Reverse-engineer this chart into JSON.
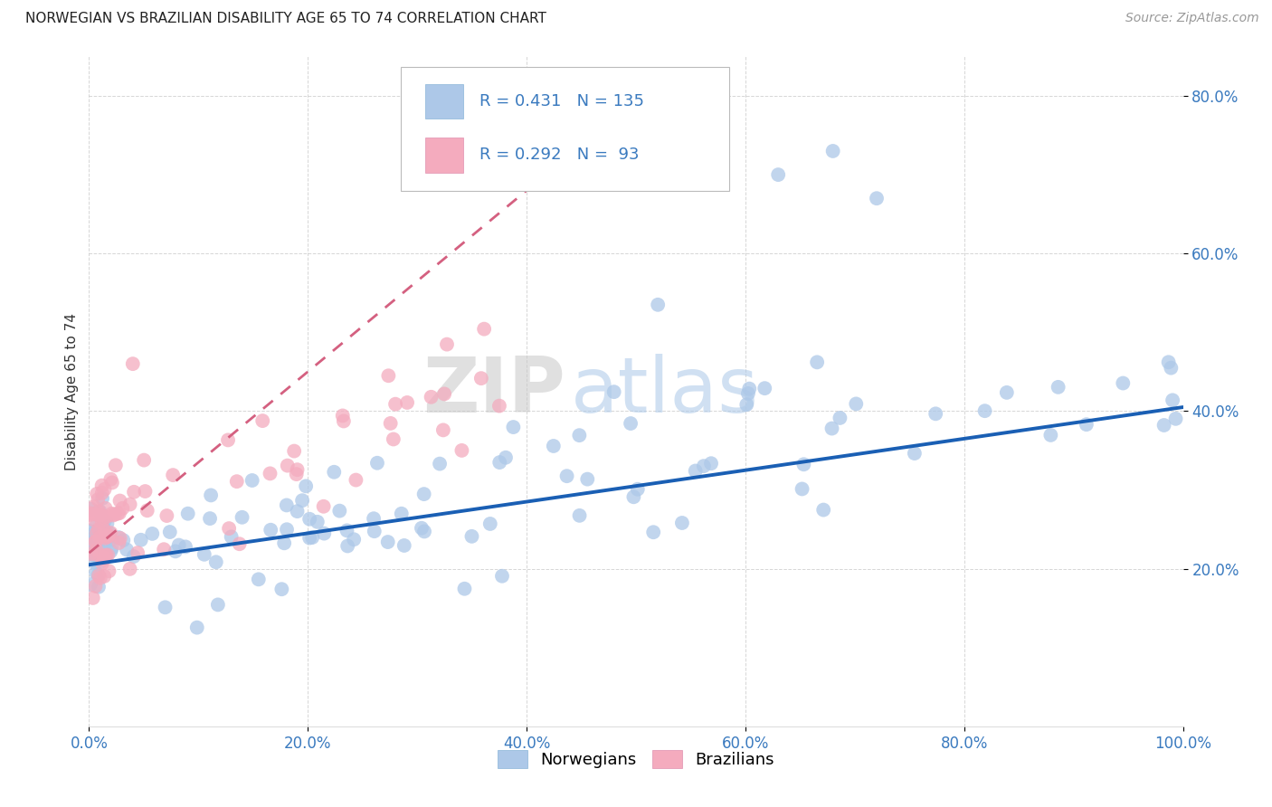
{
  "title": "NORWEGIAN VS BRAZILIAN DISABILITY AGE 65 TO 74 CORRELATION CHART",
  "source": "Source: ZipAtlas.com",
  "ylabel": "Disability Age 65 to 74",
  "xlim": [
    0.0,
    1.0
  ],
  "ylim": [
    0.0,
    0.85
  ],
  "xtick_vals": [
    0.0,
    0.2,
    0.4,
    0.6,
    0.8,
    1.0
  ],
  "ytick_vals": [
    0.2,
    0.4,
    0.6,
    0.8
  ],
  "xtick_labels": [
    "0.0%",
    "20.0%",
    "40.0%",
    "60.0%",
    "80.0%",
    "100.0%"
  ],
  "ytick_labels": [
    "20.0%",
    "40.0%",
    "60.0%",
    "80.0%"
  ],
  "norwegian_color": "#adc8e8",
  "brazilian_color": "#f4abbe",
  "norwegian_line_color": "#1a5fb4",
  "brazilian_line_color": "#d46080",
  "watermark_zip": "ZIP",
  "watermark_atlas": "atlas",
  "legend_norwegian_label": "Norwegians",
  "legend_brazilian_label": "Brazilians",
  "norwegian_R": 0.431,
  "norwegian_N": 135,
  "brazilian_R": 0.292,
  "brazilian_N": 93,
  "background_color": "#ffffff",
  "grid_color": "#cccccc",
  "tick_color": "#3a7abf",
  "title_fontsize": 11,
  "axis_label_fontsize": 11,
  "tick_fontsize": 12,
  "source_fontsize": 10,
  "nor_line_start_y": 0.205,
  "nor_line_end_y": 0.405,
  "bra_line_start_y": 0.22,
  "bra_line_end_y": 0.68,
  "bra_line_end_x": 0.4
}
